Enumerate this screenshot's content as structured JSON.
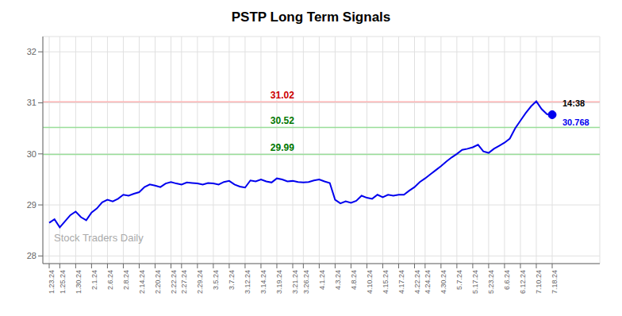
{
  "chart_data": {
    "type": "line",
    "title": "PSTP Long Term Signals",
    "categories": [
      "1.23.24",
      null,
      "1.25.24",
      null,
      null,
      "1.30.24",
      null,
      null,
      "2.1.24",
      null,
      null,
      "2.6.24",
      null,
      null,
      "2.8.24",
      null,
      null,
      "2.14.24",
      null,
      null,
      "2.20.24",
      null,
      null,
      "2.22.24",
      null,
      "2.27.24",
      null,
      null,
      "2.29.24",
      null,
      null,
      "3.5.24",
      null,
      null,
      "3.7.24",
      null,
      null,
      "3.12.24",
      null,
      null,
      "3.14.24",
      null,
      null,
      "3.19.24",
      null,
      null,
      "3.21.24",
      null,
      "3.26.24",
      null,
      null,
      "4.1.24",
      null,
      null,
      "4.3.24",
      null,
      null,
      "4.8.24",
      null,
      null,
      "4.10.24",
      null,
      null,
      "4.15.24",
      null,
      null,
      "4.17.24",
      null,
      null,
      "4.22.24",
      null,
      "4.24.24",
      null,
      null,
      "4.30.24",
      null,
      null,
      "5.7.24",
      null,
      null,
      "5.17.24",
      null,
      null,
      "5.23.24",
      null,
      null,
      "6.6.24",
      null,
      null,
      "6.12.24",
      null,
      null,
      "7.10.24",
      null,
      null,
      "7.18.24"
    ],
    "values": [
      28.65,
      28.72,
      28.56,
      28.68,
      28.8,
      28.87,
      28.76,
      28.7,
      28.85,
      28.93,
      29.05,
      29.1,
      29.07,
      29.12,
      29.2,
      29.18,
      29.22,
      29.25,
      29.35,
      29.4,
      29.38,
      29.35,
      29.42,
      29.45,
      29.42,
      29.4,
      29.44,
      29.43,
      29.42,
      29.4,
      29.43,
      29.42,
      29.4,
      29.45,
      29.47,
      29.4,
      29.36,
      29.34,
      29.48,
      29.46,
      29.5,
      29.46,
      29.44,
      29.52,
      29.5,
      29.46,
      29.47,
      29.45,
      29.44,
      29.45,
      29.48,
      29.5,
      29.46,
      29.43,
      29.1,
      29.03,
      29.07,
      29.04,
      29.08,
      29.18,
      29.14,
      29.12,
      29.2,
      29.15,
      29.2,
      29.18,
      29.2,
      29.2,
      29.28,
      29.35,
      29.45,
      29.52,
      29.6,
      29.68,
      29.76,
      29.85,
      29.93,
      30.0,
      30.08,
      30.1,
      30.13,
      30.18,
      30.05,
      30.02,
      30.1,
      30.16,
      30.22,
      30.3,
      30.5,
      30.65,
      30.8,
      30.93,
      31.03,
      30.88,
      30.78,
      30.768
    ],
    "color": "#0000ee",
    "marker": "last",
    "ylim": [
      27.85,
      32.3
    ],
    "yticks": [
      28,
      29,
      30,
      31,
      32
    ],
    "grid": true,
    "reference_lines": [
      {
        "y": 31.02,
        "label": "31.02",
        "line_color": "#ffb3b3",
        "label_color": "#cc0000"
      },
      {
        "y": 30.52,
        "label": "30.52",
        "line_color": "#99dd99",
        "label_color": "#007700"
      },
      {
        "y": 29.99,
        "label": "29.99",
        "line_color": "#99dd99",
        "label_color": "#007700"
      }
    ],
    "annotations": [
      {
        "text": "14:38",
        "color": "#000000"
      },
      {
        "text": "30.768",
        "color": "#0000ee"
      }
    ],
    "watermark": "Stock Traders Daily"
  }
}
